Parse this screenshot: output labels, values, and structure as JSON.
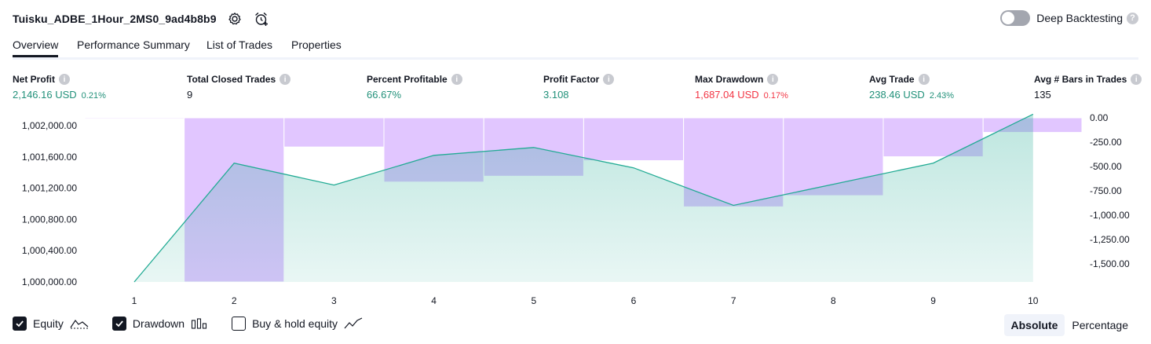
{
  "header": {
    "title": "Tuisku_ADBE_1Hour_2MS0_9ad4b8b9"
  },
  "deep_backtesting": {
    "label": "Deep Backtesting",
    "enabled": false,
    "help": "?"
  },
  "tabs": [
    {
      "label": "Overview",
      "active": true
    },
    {
      "label": "Performance Summary",
      "active": false
    },
    {
      "label": "List of Trades",
      "active": false
    },
    {
      "label": "Properties",
      "active": false
    }
  ],
  "metrics": [
    {
      "label": "Net Profit",
      "value": "2,146.16 USD",
      "pct": "0.21%",
      "tone": "pos"
    },
    {
      "label": "Total Closed Trades",
      "value": "9",
      "pct": "",
      "tone": "neu"
    },
    {
      "label": "Percent Profitable",
      "value": "66.67%",
      "pct": "",
      "tone": "pos"
    },
    {
      "label": "Profit Factor",
      "value": "3.108",
      "pct": "",
      "tone": "pos"
    },
    {
      "label": "Max Drawdown",
      "value": "1,687.04 USD",
      "pct": "0.17%",
      "tone": "neg"
    },
    {
      "label": "Avg Trade",
      "value": "238.46 USD",
      "pct": "2.43%",
      "tone": "pos"
    },
    {
      "label": "Avg # Bars in Trades",
      "value": "135",
      "pct": "",
      "tone": "neu"
    }
  ],
  "info_glyph": "i",
  "chart_data": {
    "type": "line+bar",
    "x": [
      1,
      2,
      3,
      4,
      5,
      6,
      7,
      8,
      9,
      10
    ],
    "series": [
      {
        "name": "Equity",
        "type": "area",
        "axis": "left",
        "values": [
          1000000,
          1001520,
          1001240,
          1001620,
          1001720,
          1001460,
          1000980,
          1001250,
          1001520,
          1002146
        ]
      },
      {
        "name": "Drawdown",
        "type": "bar",
        "axis": "right",
        "values": [
          -10,
          -1687,
          -300,
          -660,
          -600,
          -440,
          -915,
          -800,
          -400,
          -150
        ]
      }
    ],
    "left_axis": {
      "ticks": [
        "1,002,000.00",
        "1,001,600.00",
        "1,001,200.00",
        "1,000,800.00",
        "1,000,400.00",
        "1,000,000.00"
      ],
      "range": [
        1000000,
        1002100
      ]
    },
    "right_axis": {
      "ticks": [
        "0.00",
        "-250.00",
        "-500.00",
        "-750.00",
        "-1,000.00",
        "-1,250.00",
        "-1,500.00"
      ],
      "range": [
        -1687,
        0
      ]
    },
    "x_tick_labels": [
      "1",
      "2",
      "3",
      "4",
      "5",
      "6",
      "7",
      "8",
      "9",
      "10"
    ],
    "colors": {
      "equity_line": "#22ab94",
      "equity_fill": "#22ab94",
      "drawdown": "#d1a8ff"
    }
  },
  "legend": [
    {
      "label": "Equity",
      "checked": true,
      "icon": "equity-icon"
    },
    {
      "label": "Drawdown",
      "checked": true,
      "icon": "drawdown-icon"
    },
    {
      "label": "Buy & hold equity",
      "checked": false,
      "icon": "buy-hold-icon"
    }
  ],
  "view_mode": {
    "options": [
      "Absolute",
      "Percentage"
    ],
    "selected": "Absolute"
  }
}
